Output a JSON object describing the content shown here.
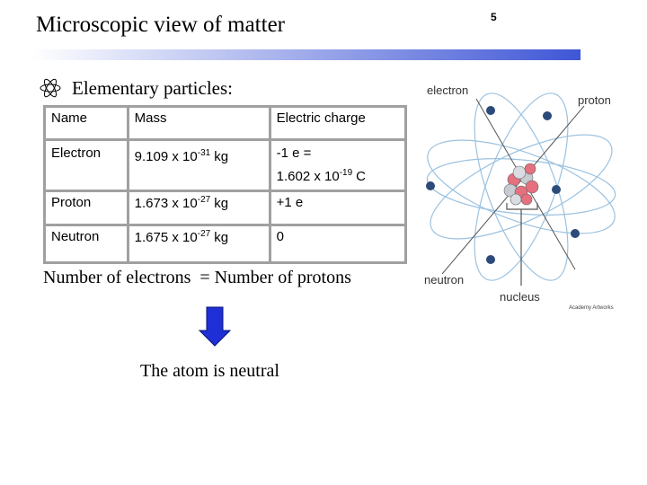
{
  "title": "Microscopic view of matter",
  "slide_number": "5",
  "bullet": "Elementary particles:",
  "table": {
    "header": [
      "Name",
      "Mass",
      "Electric charge"
    ],
    "rows": [
      {
        "name": "Electron",
        "mass": "9.109 x 10",
        "mass_exp": "-31",
        "mass_unit": "kg",
        "charge": "-1 e =",
        "charge_line2": "1.602 x 10",
        "charge_line2_exp": "-19",
        "charge_line2_unit": "C"
      },
      {
        "name": "Proton",
        "mass": "1.673 x 10",
        "mass_exp": "-27",
        "mass_unit": "kg",
        "charge": "+1 e"
      },
      {
        "name": "Neutron",
        "mass": "1.675 x 10",
        "mass_exp": "-27",
        "mass_unit": "kg",
        "charge": "0"
      }
    ]
  },
  "statement": "Number of electrons  = Number of protons",
  "conclusion": "The atom is neutral",
  "diagram": {
    "labels": {
      "electron": "electron",
      "proton": "proton",
      "neutron": "neutron",
      "nucleus": "nucleus",
      "credit": "Academy Artworks"
    }
  }
}
